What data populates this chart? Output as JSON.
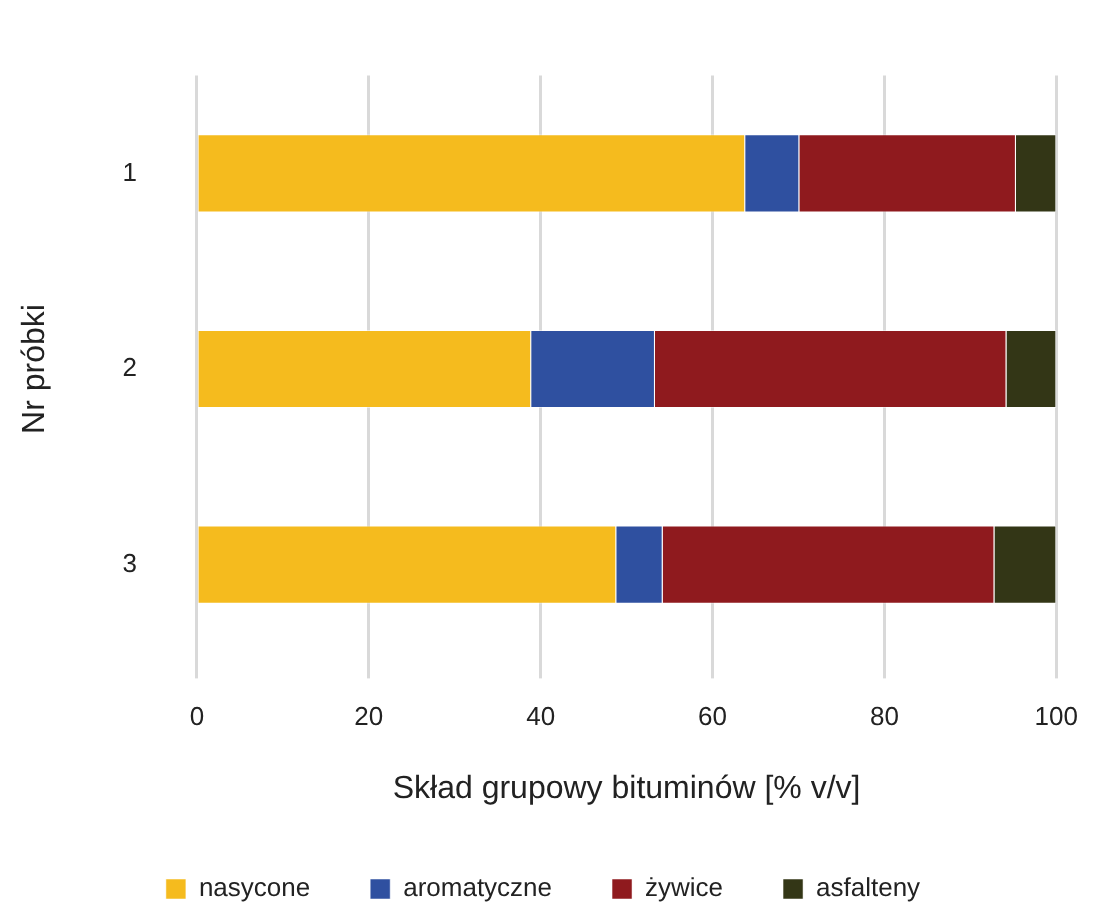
{
  "chart_data": {
    "type": "bar",
    "orientation": "horizontal",
    "stacked": true,
    "categories": [
      "1",
      "2",
      "3"
    ],
    "series": [
      {
        "name": "nasycone",
        "color": "#f5bb1e",
        "values": [
          63.8,
          38.9,
          48.8
        ]
      },
      {
        "name": "aromatyczne",
        "color": "#2f50a0",
        "values": [
          6.3,
          14.4,
          5.4
        ]
      },
      {
        "name": "żywice",
        "color": "#8f1a1e",
        "values": [
          25.2,
          40.9,
          38.6
        ]
      },
      {
        "name": "asfalteny",
        "color": "#333616",
        "values": [
          4.7,
          5.8,
          7.2
        ]
      }
    ],
    "xlabel": "Skład grupowy bituminów [% v/v]",
    "ylabel": "Nr próbki",
    "xlim": [
      0,
      100
    ],
    "xticks": [
      0,
      20,
      40,
      60,
      80,
      100
    ],
    "grid": "x",
    "legend": "bottom"
  }
}
